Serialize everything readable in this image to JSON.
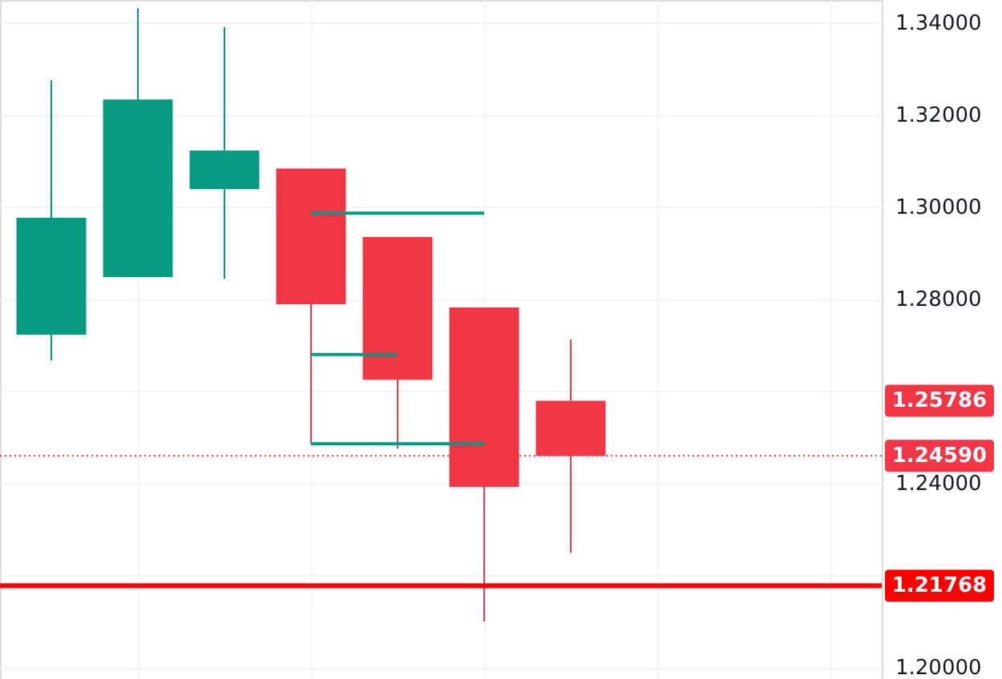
{
  "chart_data": {
    "type": "candlestick",
    "categories": [
      null,
      null,
      null,
      null,
      null,
      null,
      null,
      null,
      null,
      null
    ],
    "ohlc": [
      [
        1.2722,
        1.3275,
        1.2666,
        1.2976
      ],
      [
        1.2847,
        1.3431,
        1.2847,
        1.3233
      ],
      [
        1.3038,
        1.339,
        1.2843,
        1.3122
      ],
      [
        1.3083,
        1.3083,
        1.2485,
        1.2788
      ],
      [
        1.2934,
        1.2934,
        1.2474,
        1.2624
      ],
      [
        1.2781,
        1.2781,
        1.2099,
        1.2391
      ],
      [
        1.25786,
        1.2711,
        1.2248,
        1.2459
      ],
      null,
      null,
      null
    ],
    "series": [
      {
        "type": "line",
        "color": "#089981",
        "values": [
          null,
          null,
          null,
          1.2986,
          1.2986,
          1.2986,
          null,
          null,
          null,
          null
        ]
      },
      {
        "type": "line",
        "color": "#089981",
        "values": [
          null,
          null,
          null,
          1.2679,
          1.2679,
          null,
          null,
          null,
          null,
          null
        ]
      },
      {
        "type": "line",
        "color": "#089981",
        "values": [
          null,
          null,
          null,
          1.2485,
          1.2485,
          1.2485,
          null,
          null,
          null,
          null
        ]
      }
    ],
    "ylim": [
      1.1974,
      1.3449
    ],
    "yticks": [
      {
        "value": 1.2,
        "label": "1.20000"
      },
      {
        "value": 1.22,
        "label": null
      },
      {
        "value": 1.24,
        "label": "1.24000"
      },
      {
        "value": 1.26,
        "label": null
      },
      {
        "value": 1.28,
        "label": "1.28000"
      },
      {
        "value": 1.3,
        "label": "1.30000"
      },
      {
        "value": 1.32,
        "label": "1.32000"
      },
      {
        "value": 1.34,
        "label": "1.34000"
      }
    ],
    "ref_lines": [
      {
        "axis": "y",
        "value": 1.21768,
        "label": "1.21768",
        "color": "#ff0000",
        "line_style": "solid"
      },
      {
        "axis": "y",
        "value": 1.2459,
        "label": "1.24590",
        "color": "#f23645",
        "line_style": "dotted"
      }
    ],
    "annotations": [
      "1.25786"
    ],
    "grid": true,
    "tick_labels": "y"
  }
}
